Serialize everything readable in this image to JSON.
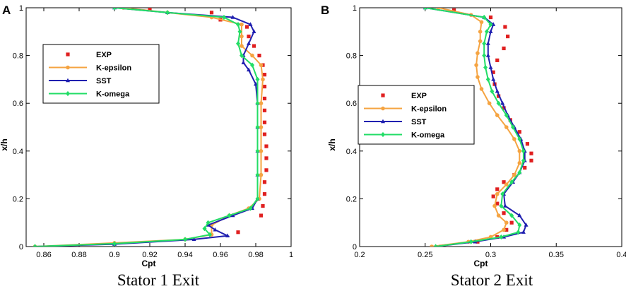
{
  "chart_data": [
    {
      "panel_label": "A",
      "type": "line",
      "caption": "Stator 1 Exit",
      "xlabel": "Cpt",
      "ylabel": "x/h",
      "xlim": [
        0.85,
        1.0
      ],
      "ylim": [
        0,
        1
      ],
      "xticks": [
        "0.86",
        "0.88",
        "0.9",
        "0.92",
        "0.94",
        "0.96",
        "0.98",
        "1"
      ],
      "xtick_values": [
        0.86,
        0.88,
        0.9,
        0.92,
        0.94,
        0.96,
        0.98,
        1.0
      ],
      "yticks": [
        "0",
        "0.2",
        "0.4",
        "0.6",
        "0.8",
        "1"
      ],
      "ytick_values": [
        0,
        0.2,
        0.4,
        0.6,
        0.8,
        1.0
      ],
      "legend": [
        "EXP",
        "K-epsilon",
        "SST",
        "K-omega"
      ],
      "series": [
        {
          "name": "EXP",
          "marker": "square",
          "color": "#e02020",
          "line": false,
          "points": [
            [
              0.97,
              0.06
            ],
            [
              0.983,
              0.13
            ],
            [
              0.984,
              0.17
            ],
            [
              0.985,
              0.22
            ],
            [
              0.985,
              0.27
            ],
            [
              0.986,
              0.32
            ],
            [
              0.986,
              0.37
            ],
            [
              0.986,
              0.42
            ],
            [
              0.985,
              0.47
            ],
            [
              0.985,
              0.52
            ],
            [
              0.985,
              0.57
            ],
            [
              0.985,
              0.62
            ],
            [
              0.985,
              0.67
            ],
            [
              0.985,
              0.72
            ],
            [
              0.984,
              0.76
            ],
            [
              0.982,
              0.8
            ],
            [
              0.979,
              0.84
            ],
            [
              0.976,
              0.88
            ],
            [
              0.975,
              0.92
            ],
            [
              0.96,
              0.95
            ],
            [
              0.955,
              0.98
            ],
            [
              0.92,
              0.995
            ]
          ]
        },
        {
          "name": "K-epsilon",
          "marker": "circle",
          "color": "#f5a442",
          "line": true,
          "points": [
            [
              0.855,
              0.0
            ],
            [
              0.9,
              0.015
            ],
            [
              0.94,
              0.03
            ],
            [
              0.955,
              0.05
            ],
            [
              0.955,
              0.09
            ],
            [
              0.965,
              0.13
            ],
            [
              0.976,
              0.16
            ],
            [
              0.982,
              0.2
            ],
            [
              0.983,
              0.3
            ],
            [
              0.983,
              0.4
            ],
            [
              0.983,
              0.5
            ],
            [
              0.983,
              0.6
            ],
            [
              0.984,
              0.7
            ],
            [
              0.983,
              0.76
            ],
            [
              0.978,
              0.8
            ],
            [
              0.972,
              0.84
            ],
            [
              0.972,
              0.88
            ],
            [
              0.972,
              0.93
            ],
            [
              0.955,
              0.96
            ],
            [
              0.93,
              0.98
            ],
            [
              0.905,
              1.0
            ]
          ]
        },
        {
          "name": "SST",
          "marker": "triangle",
          "color": "#2020b0",
          "line": true,
          "points": [
            [
              0.855,
              0.0
            ],
            [
              0.9,
              0.01
            ],
            [
              0.945,
              0.03
            ],
            [
              0.964,
              0.045
            ],
            [
              0.957,
              0.07
            ],
            [
              0.953,
              0.09
            ],
            [
              0.967,
              0.13
            ],
            [
              0.978,
              0.16
            ],
            [
              0.981,
              0.2
            ],
            [
              0.981,
              0.3
            ],
            [
              0.981,
              0.4
            ],
            [
              0.981,
              0.5
            ],
            [
              0.981,
              0.6
            ],
            [
              0.98,
              0.68
            ],
            [
              0.976,
              0.74
            ],
            [
              0.973,
              0.77
            ],
            [
              0.973,
              0.8
            ],
            [
              0.976,
              0.85
            ],
            [
              0.979,
              0.9
            ],
            [
              0.977,
              0.93
            ],
            [
              0.967,
              0.96
            ],
            [
              0.93,
              0.98
            ],
            [
              0.9,
              1.0
            ]
          ]
        },
        {
          "name": "K-omega",
          "marker": "diamond",
          "color": "#22dd66",
          "line": true,
          "points": [
            [
              0.855,
              0.0
            ],
            [
              0.9,
              0.012
            ],
            [
              0.94,
              0.03
            ],
            [
              0.954,
              0.05
            ],
            [
              0.951,
              0.075
            ],
            [
              0.953,
              0.1
            ],
            [
              0.965,
              0.13
            ],
            [
              0.977,
              0.16
            ],
            [
              0.981,
              0.2
            ],
            [
              0.981,
              0.3
            ],
            [
              0.981,
              0.4
            ],
            [
              0.981,
              0.5
            ],
            [
              0.981,
              0.6
            ],
            [
              0.981,
              0.7
            ],
            [
              0.978,
              0.76
            ],
            [
              0.972,
              0.8
            ],
            [
              0.97,
              0.85
            ],
            [
              0.971,
              0.9
            ],
            [
              0.97,
              0.93
            ],
            [
              0.962,
              0.96
            ],
            [
              0.93,
              0.98
            ],
            [
              0.9,
              1.0
            ]
          ]
        }
      ]
    },
    {
      "panel_label": "B",
      "type": "line",
      "caption": "Stator 2 Exit",
      "xlabel": "Cpt",
      "ylabel": "x/h",
      "xlim": [
        0.2,
        0.4
      ],
      "ylim": [
        0,
        1
      ],
      "xticks": [
        "0.2",
        "0.25",
        "0.3",
        "0.35",
        "0.4"
      ],
      "xtick_values": [
        0.2,
        0.25,
        0.3,
        0.35,
        0.4
      ],
      "yticks": [
        "0",
        "0.2",
        "0.4",
        "0.6",
        "0.8",
        "1"
      ],
      "yticks_values_note": "",
      "ytick_values": [
        0,
        0.2,
        0.4,
        0.6,
        0.8,
        1.0
      ],
      "legend": [
        "EXP",
        "K-epsilon",
        "SST",
        "K-omega"
      ],
      "series": [
        {
          "name": "EXP",
          "marker": "square",
          "color": "#e02020",
          "line": false,
          "points": [
            [
              0.262,
              0.0
            ],
            [
              0.29,
              0.02
            ],
            [
              0.305,
              0.04
            ],
            [
              0.312,
              0.07
            ],
            [
              0.316,
              0.1
            ],
            [
              0.31,
              0.14
            ],
            [
              0.305,
              0.18
            ],
            [
              0.302,
              0.21
            ],
            [
              0.305,
              0.24
            ],
            [
              0.31,
              0.27
            ],
            [
              0.318,
              0.3
            ],
            [
              0.326,
              0.33
            ],
            [
              0.331,
              0.36
            ],
            [
              0.331,
              0.39
            ],
            [
              0.328,
              0.43
            ],
            [
              0.322,
              0.48
            ],
            [
              0.315,
              0.53
            ],
            [
              0.31,
              0.58
            ],
            [
              0.306,
              0.63
            ],
            [
              0.303,
              0.68
            ],
            [
              0.302,
              0.73
            ],
            [
              0.305,
              0.78
            ],
            [
              0.31,
              0.83
            ],
            [
              0.313,
              0.88
            ],
            [
              0.311,
              0.92
            ],
            [
              0.3,
              0.96
            ],
            [
              0.272,
              0.99
            ]
          ]
        },
        {
          "name": "K-epsilon",
          "marker": "circle",
          "color": "#f5a442",
          "line": true,
          "points": [
            [
              0.255,
              0.0
            ],
            [
              0.283,
              0.02
            ],
            [
              0.3,
              0.04
            ],
            [
              0.31,
              0.07
            ],
            [
              0.312,
              0.1
            ],
            [
              0.306,
              0.13
            ],
            [
              0.303,
              0.17
            ],
            [
              0.305,
              0.22
            ],
            [
              0.312,
              0.26
            ],
            [
              0.318,
              0.3
            ],
            [
              0.322,
              0.35
            ],
            [
              0.322,
              0.4
            ],
            [
              0.318,
              0.45
            ],
            [
              0.312,
              0.5
            ],
            [
              0.305,
              0.55
            ],
            [
              0.299,
              0.6
            ],
            [
              0.293,
              0.66
            ],
            [
              0.29,
              0.71
            ],
            [
              0.289,
              0.76
            ],
            [
              0.29,
              0.81
            ],
            [
              0.292,
              0.86
            ],
            [
              0.292,
              0.9
            ],
            [
              0.293,
              0.94
            ],
            [
              0.285,
              0.97
            ],
            [
              0.26,
              1.0
            ]
          ]
        },
        {
          "name": "SST",
          "marker": "triangle",
          "color": "#2020b0",
          "line": true,
          "points": [
            [
              0.258,
              0.0
            ],
            [
              0.288,
              0.02
            ],
            [
              0.31,
              0.04
            ],
            [
              0.325,
              0.06
            ],
            [
              0.327,
              0.09
            ],
            [
              0.322,
              0.13
            ],
            [
              0.311,
              0.17
            ],
            [
              0.31,
              0.22
            ],
            [
              0.317,
              0.27
            ],
            [
              0.322,
              0.31
            ],
            [
              0.326,
              0.36
            ],
            [
              0.326,
              0.4
            ],
            [
              0.323,
              0.45
            ],
            [
              0.318,
              0.5
            ],
            [
              0.313,
              0.55
            ],
            [
              0.309,
              0.6
            ],
            [
              0.305,
              0.65
            ],
            [
              0.302,
              0.7
            ],
            [
              0.3,
              0.75
            ],
            [
              0.298,
              0.8
            ],
            [
              0.298,
              0.85
            ],
            [
              0.3,
              0.9
            ],
            [
              0.302,
              0.93
            ],
            [
              0.295,
              0.96
            ],
            [
              0.25,
              1.0
            ]
          ]
        },
        {
          "name": "K-omega",
          "marker": "diamond",
          "color": "#22dd66",
          "line": true,
          "points": [
            [
              0.258,
              0.0
            ],
            [
              0.285,
              0.02
            ],
            [
              0.308,
              0.04
            ],
            [
              0.321,
              0.06
            ],
            [
              0.322,
              0.09
            ],
            [
              0.316,
              0.13
            ],
            [
              0.308,
              0.17
            ],
            [
              0.309,
              0.22
            ],
            [
              0.316,
              0.27
            ],
            [
              0.322,
              0.31
            ],
            [
              0.325,
              0.36
            ],
            [
              0.325,
              0.4
            ],
            [
              0.322,
              0.45
            ],
            [
              0.317,
              0.5
            ],
            [
              0.312,
              0.55
            ],
            [
              0.306,
              0.6
            ],
            [
              0.301,
              0.65
            ],
            [
              0.298,
              0.7
            ],
            [
              0.296,
              0.75
            ],
            [
              0.295,
              0.8
            ],
            [
              0.295,
              0.85
            ],
            [
              0.297,
              0.9
            ],
            [
              0.3,
              0.93
            ],
            [
              0.295,
              0.96
            ],
            [
              0.25,
              1.0
            ]
          ]
        }
      ]
    }
  ]
}
